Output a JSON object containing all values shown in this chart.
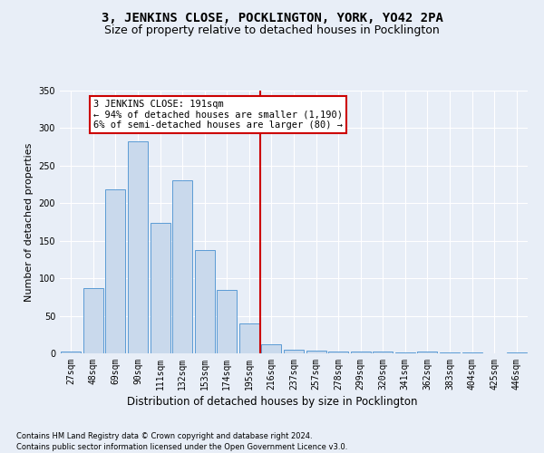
{
  "title": "3, JENKINS CLOSE, POCKLINGTON, YORK, YO42 2PA",
  "subtitle": "Size of property relative to detached houses in Pocklington",
  "xlabel": "Distribution of detached houses by size in Pocklington",
  "ylabel": "Number of detached properties",
  "categories": [
    "27sqm",
    "48sqm",
    "69sqm",
    "90sqm",
    "111sqm",
    "132sqm",
    "153sqm",
    "174sqm",
    "195sqm",
    "216sqm",
    "237sqm",
    "257sqm",
    "278sqm",
    "299sqm",
    "320sqm",
    "341sqm",
    "362sqm",
    "383sqm",
    "404sqm",
    "425sqm",
    "446sqm"
  ],
  "values": [
    3,
    87,
    219,
    282,
    174,
    231,
    138,
    85,
    40,
    12,
    5,
    4,
    2,
    3,
    3,
    1,
    2,
    1,
    1,
    0,
    1
  ],
  "bar_color": "#c9d9ec",
  "bar_edge_color": "#5b9bd5",
  "vline_x_index": 8,
  "vline_color": "#cc0000",
  "annotation_title": "3 JENKINS CLOSE: 191sqm",
  "annotation_line1": "← 94% of detached houses are smaller (1,190)",
  "annotation_line2": "6% of semi-detached houses are larger (80) →",
  "annotation_box_color": "#ffffff",
  "annotation_box_edge": "#cc0000",
  "background_color": "#e8eef7",
  "grid_color": "#ffffff",
  "footnote1": "Contains HM Land Registry data © Crown copyright and database right 2024.",
  "footnote2": "Contains public sector information licensed under the Open Government Licence v3.0.",
  "ylim": [
    0,
    350
  ],
  "yticks": [
    0,
    50,
    100,
    150,
    200,
    250,
    300,
    350
  ],
  "title_fontsize": 10,
  "subtitle_fontsize": 9,
  "xlabel_fontsize": 8.5,
  "ylabel_fontsize": 8,
  "tick_fontsize": 7,
  "annotation_fontsize": 7.5,
  "footnote_fontsize": 6
}
